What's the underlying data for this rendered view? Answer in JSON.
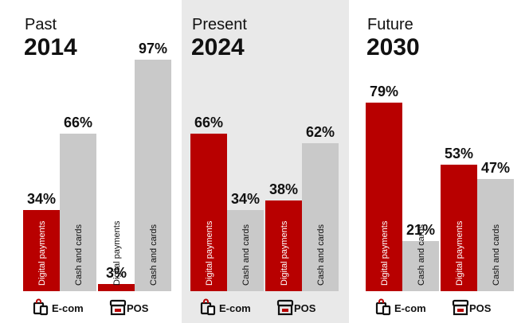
{
  "chart_data": {
    "type": "bar",
    "value_suffix": "%",
    "ylim": [
      0,
      100
    ],
    "colors": {
      "digital": "#b80000",
      "cash": "#c9c9c9",
      "highlight_panel": "#e9e9e9"
    },
    "panels": [
      {
        "label": "Past",
        "year": "2014",
        "shaded": false,
        "groups": [
          {
            "name": "E-com",
            "icon": "shopping-bag-icon",
            "bars": [
              {
                "series": "Digital payments",
                "value": 34
              },
              {
                "series": "Cash and cards",
                "value": 66
              }
            ]
          },
          {
            "name": "POS",
            "icon": "storefront-icon",
            "bars": [
              {
                "series": "Digital payments",
                "value": 3
              },
              {
                "series": "Cash and cards",
                "value": 97
              }
            ]
          }
        ]
      },
      {
        "label": "Present",
        "year": "2024",
        "shaded": true,
        "groups": [
          {
            "name": "E-com",
            "icon": "shopping-bag-icon",
            "bars": [
              {
                "series": "Digital payments",
                "value": 66
              },
              {
                "series": "Cash and cards",
                "value": 34
              }
            ]
          },
          {
            "name": "POS",
            "icon": "storefront-icon",
            "bars": [
              {
                "series": "Digital payments",
                "value": 38
              },
              {
                "series": "Cash and cards",
                "value": 62
              }
            ]
          }
        ]
      },
      {
        "label": "Future",
        "year": "2030",
        "shaded": false,
        "groups": [
          {
            "name": "E-com",
            "icon": "shopping-bag-icon",
            "bars": [
              {
                "series": "Digital payments",
                "value": 79
              },
              {
                "series": "Cash and cards",
                "value": 21
              }
            ]
          },
          {
            "name": "POS",
            "icon": "storefront-icon",
            "bars": [
              {
                "series": "Digital payments",
                "value": 53
              },
              {
                "series": "Cash and cards",
                "value": 47
              }
            ]
          }
        ]
      }
    ]
  }
}
